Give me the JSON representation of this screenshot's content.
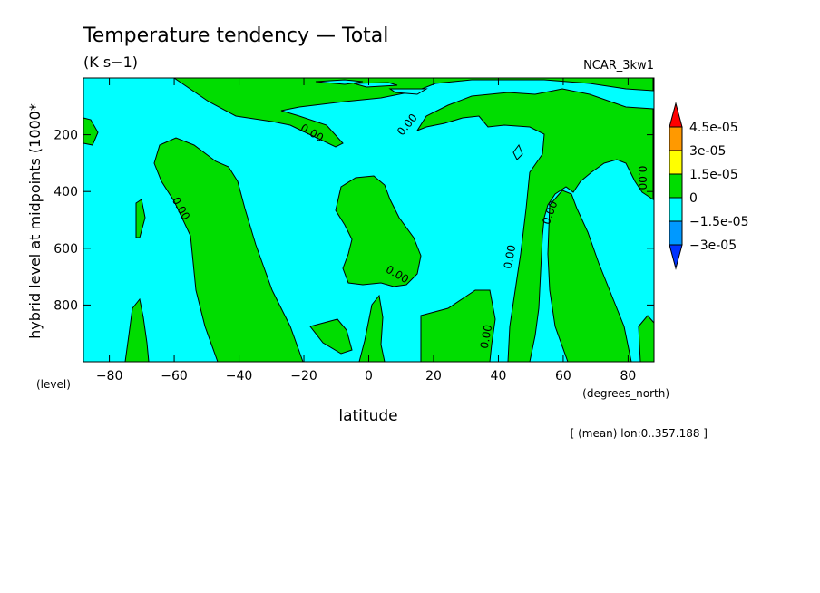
{
  "chart_data": {
    "type": "contour",
    "title": "Temperature tendency — Total",
    "units": "(K s−1)",
    "dataset": "NCAR_3kw1",
    "xlabel": "latitude",
    "xunits": "(degrees_north)",
    "ylabel": "hybrid level at midpoints (1000*",
    "yunits": "(level)",
    "xlim": [
      -88,
      88
    ],
    "ylim": [
      1000,
      0
    ],
    "x_ticks": [
      -80,
      -60,
      -40,
      -20,
      0,
      20,
      40,
      60,
      80
    ],
    "y_ticks": [
      200,
      400,
      600,
      800
    ],
    "footnote": "[ (mean) lon:0..357.188 ]",
    "contour_label": "0.00",
    "legend": {
      "levels": [
        "4.5e-05",
        "3e-05",
        "1.5e-05",
        "0",
        "−1.5e-05",
        "−3e-05"
      ],
      "colors": [
        "#ff0000",
        "#ff9900",
        "#ffff00",
        "#00dd00",
        "#00ffff",
        "#0099ff",
        "#0033ff"
      ]
    },
    "background_color": "#00ffff",
    "positive_color": "#00dd00"
  }
}
